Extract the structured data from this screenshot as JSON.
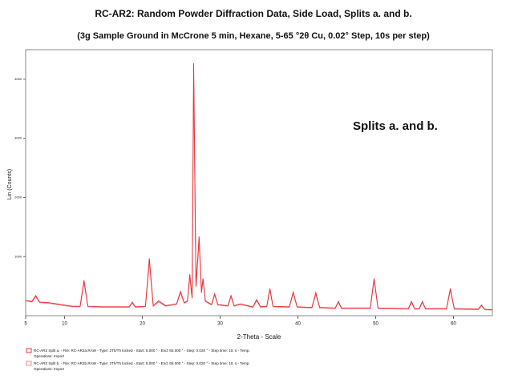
{
  "chart_data": {
    "type": "line",
    "title": "RC-AR2:   Random Powder Diffraction Data, Side Load, Splits a. and b.",
    "subtitle": "(3g Sample Ground in McCrone 5 min, Hexane, 5-65 °2θ Cu, 0.02° Step, 10s per step)",
    "annotation": "Splits a. and b.",
    "x_label": "2-Theta - Scale",
    "y_label": "Lin (Counts)",
    "xlim": [
      5,
      65
    ],
    "xticks": [
      5,
      10,
      20,
      30,
      40,
      50,
      60
    ],
    "ylim": [
      0,
      4500
    ],
    "yticks": [
      1000,
      2000,
      3000,
      4000
    ],
    "x": [
      5,
      5.8,
      6.3,
      6.8,
      8,
      9,
      10,
      11,
      12,
      12.5,
      13,
      15,
      17,
      18.3,
      18.7,
      19.1,
      20.4,
      20.9,
      21.4,
      22.1,
      23,
      24.4,
      24.9,
      25.4,
      25.8,
      26.1,
      26.4,
      26.6,
      26.9,
      27.3,
      27.6,
      27.8,
      28.1,
      28.9,
      29.3,
      29.7,
      31,
      31.4,
      31.8,
      32.6,
      34.2,
      34.7,
      35.2,
      36,
      36.4,
      36.8,
      38.9,
      39.4,
      39.9,
      41.8,
      42.3,
      42.8,
      44.8,
      45.2,
      45.6,
      49.3,
      49.8,
      50.3,
      54.2,
      54.6,
      55.0,
      55.6,
      56.0,
      56.4,
      59.1,
      59.6,
      60.1,
      63.2,
      63.6,
      64,
      65
    ],
    "series": [
      {
        "name": "RC-AR2 Split a. - File: RC-AR2a.RAW - Type: 2Th/Th locked - Start: 5.000 ° - End: 65.000 ° - Step: 0.020 ° - Step time: 10. s - Temp.",
        "color": "#e8333a",
        "values": [
          260,
          240,
          340,
          230,
          220,
          200,
          180,
          160,
          160,
          600,
          160,
          150,
          150,
          150,
          230,
          150,
          160,
          970,
          170,
          250,
          170,
          200,
          410,
          220,
          250,
          700,
          300,
          4270,
          500,
          1340,
          400,
          630,
          250,
          190,
          370,
          190,
          170,
          340,
          170,
          200,
          150,
          270,
          150,
          160,
          460,
          160,
          150,
          400,
          150,
          140,
          390,
          140,
          130,
          240,
          130,
          130,
          630,
          130,
          120,
          240,
          120,
          120,
          240,
          120,
          120,
          460,
          120,
          110,
          180,
          110,
          100
        ]
      },
      {
        "name": "RC-AR2 Split b. - File: RC-AR2b.RAW - Type: 2Th/Th locked - Start: 5.000 ° - End: 65.000 ° - Step: 0.020 ° - Step time: 10. s - Temp.",
        "color": "#f28a8a",
        "values": [
          250,
          230,
          320,
          220,
          210,
          190,
          170,
          150,
          150,
          560,
          150,
          140,
          140,
          140,
          210,
          140,
          150,
          900,
          160,
          230,
          160,
          190,
          380,
          210,
          240,
          650,
          290,
          3950,
          480,
          1250,
          380,
          600,
          240,
          180,
          350,
          180,
          160,
          320,
          160,
          190,
          140,
          250,
          140,
          150,
          430,
          150,
          140,
          380,
          140,
          130,
          360,
          130,
          120,
          220,
          120,
          120,
          590,
          120,
          110,
          220,
          110,
          110,
          220,
          110,
          110,
          430,
          110,
          100,
          170,
          100,
          95
        ]
      }
    ],
    "legend_notes": [
      "Operations: Import",
      "Operations: Import"
    ]
  }
}
